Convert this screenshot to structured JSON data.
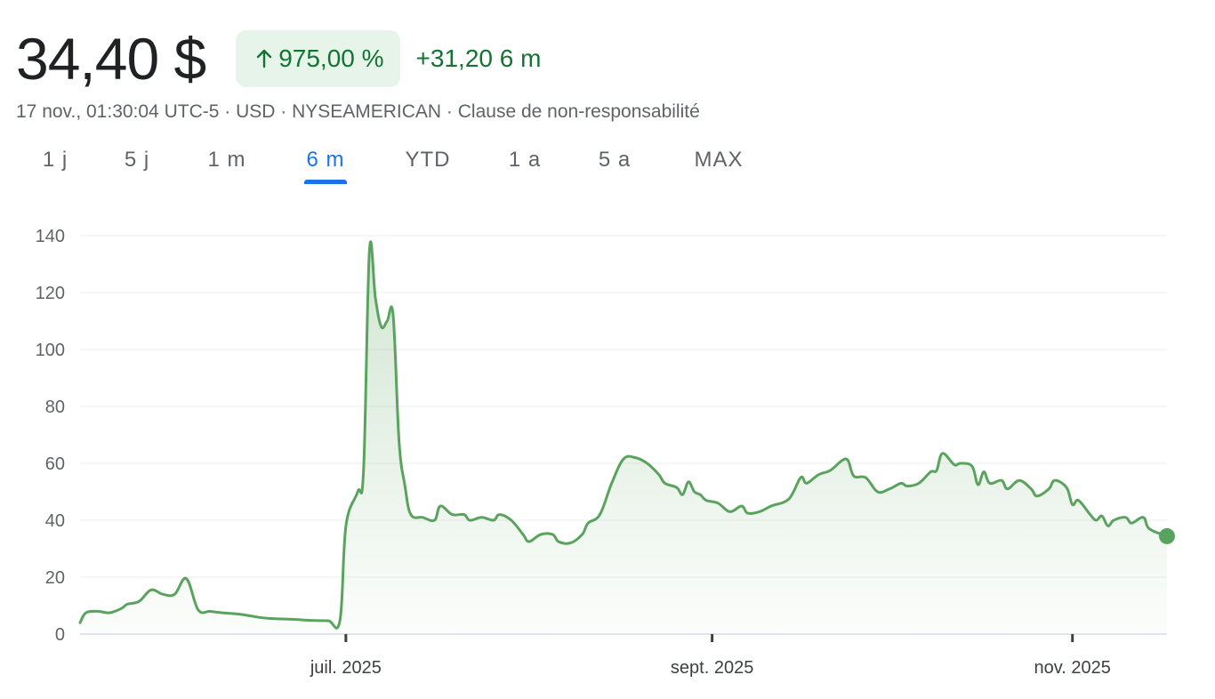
{
  "quote": {
    "price": "34,40 $",
    "change_percent": "975,00 %",
    "change_abs": "+31,20 6 m",
    "meta": "17 nov., 01:30:04 UTC-5 · USD · NYSEAMERICAN · Clause de non-responsabilité",
    "direction": "up"
  },
  "tabs": [
    {
      "label": "1 j",
      "active": false
    },
    {
      "label": "5 j",
      "active": false
    },
    {
      "label": "1 m",
      "active": false
    },
    {
      "label": "6 m",
      "active": true
    },
    {
      "label": "YTD",
      "active": false
    },
    {
      "label": "1 a",
      "active": false
    },
    {
      "label": "5 a",
      "active": false
    },
    {
      "label": "MAX",
      "active": false
    }
  ],
  "colors": {
    "up": "#137333",
    "line": "#5aa35e",
    "accent": "#1a73e8",
    "badge_bg": "#e6f4ea"
  },
  "chart_data": {
    "type": "area",
    "ylim": [
      0,
      140
    ],
    "yticks": [
      "0",
      "20",
      "40",
      "60",
      "80",
      "100",
      "120",
      "140"
    ],
    "xlim": [
      "2025-05-17",
      "2025-11-17"
    ],
    "xticks": [
      {
        "date": "2025-07-01",
        "label": "juil. 2025"
      },
      {
        "date": "2025-09-01",
        "label": "sept. 2025"
      },
      {
        "date": "2025-11-01",
        "label": "nov. 2025"
      }
    ],
    "grid": true,
    "series": [
      {
        "values": [
          [
            "2025-05-17",
            4
          ],
          [
            "2025-05-18",
            7.5
          ],
          [
            "2025-05-20",
            8
          ],
          [
            "2025-05-22",
            7.5
          ],
          [
            "2025-05-24",
            9
          ],
          [
            "2025-05-25",
            10.5
          ],
          [
            "2025-05-27",
            11.5
          ],
          [
            "2025-05-29",
            15.5
          ],
          [
            "2025-05-31",
            14
          ],
          [
            "2025-06-02",
            14
          ],
          [
            "2025-06-04",
            19.5
          ],
          [
            "2025-06-06",
            8.5
          ],
          [
            "2025-06-08",
            8
          ],
          [
            "2025-06-10",
            7.5
          ],
          [
            "2025-06-13",
            7
          ],
          [
            "2025-06-16",
            6
          ],
          [
            "2025-06-18",
            5.5
          ],
          [
            "2025-06-22",
            5.2
          ],
          [
            "2025-06-25",
            4.8
          ],
          [
            "2025-06-28",
            4.7
          ],
          [
            "2025-06-30",
            4.8
          ],
          [
            "2025-07-01",
            38
          ],
          [
            "2025-07-03",
            50
          ],
          [
            "2025-07-04",
            58
          ],
          [
            "2025-07-05",
            135
          ],
          [
            "2025-07-06",
            118
          ],
          [
            "2025-07-07",
            108
          ],
          [
            "2025-07-08",
            110
          ],
          [
            "2025-07-09",
            112
          ],
          [
            "2025-07-10",
            68
          ],
          [
            "2025-07-11",
            52
          ],
          [
            "2025-07-12",
            42
          ],
          [
            "2025-07-14",
            41
          ],
          [
            "2025-07-16",
            40
          ],
          [
            "2025-07-17",
            45
          ],
          [
            "2025-07-19",
            42
          ],
          [
            "2025-07-21",
            42
          ],
          [
            "2025-07-22",
            40
          ],
          [
            "2025-07-24",
            41
          ],
          [
            "2025-07-26",
            40
          ],
          [
            "2025-07-27",
            42
          ],
          [
            "2025-07-29",
            40
          ],
          [
            "2025-07-31",
            35
          ],
          [
            "2025-08-01",
            32.5
          ],
          [
            "2025-08-03",
            35
          ],
          [
            "2025-08-05",
            35
          ],
          [
            "2025-08-06",
            32.5
          ],
          [
            "2025-08-08",
            32
          ],
          [
            "2025-08-10",
            35
          ],
          [
            "2025-08-11",
            39
          ],
          [
            "2025-08-13",
            42
          ],
          [
            "2025-08-15",
            53
          ],
          [
            "2025-08-17",
            61.5
          ],
          [
            "2025-08-19",
            62
          ],
          [
            "2025-08-21",
            60
          ],
          [
            "2025-08-23",
            56
          ],
          [
            "2025-08-24",
            53
          ],
          [
            "2025-08-26",
            51.5
          ],
          [
            "2025-08-27",
            49
          ],
          [
            "2025-08-28",
            53.5
          ],
          [
            "2025-08-29",
            50
          ],
          [
            "2025-08-30",
            49
          ],
          [
            "2025-08-31",
            47
          ],
          [
            "2025-09-02",
            46
          ],
          [
            "2025-09-04",
            43
          ],
          [
            "2025-09-06",
            45
          ],
          [
            "2025-09-07",
            42.5
          ],
          [
            "2025-09-09",
            43
          ],
          [
            "2025-09-11",
            45
          ],
          [
            "2025-09-14",
            47.5
          ],
          [
            "2025-09-16",
            55
          ],
          [
            "2025-09-17",
            53
          ],
          [
            "2025-09-19",
            56
          ],
          [
            "2025-09-21",
            57.5
          ],
          [
            "2025-09-23",
            61
          ],
          [
            "2025-09-24",
            61
          ],
          [
            "2025-09-25",
            55.5
          ],
          [
            "2025-09-27",
            55
          ],
          [
            "2025-09-29",
            50
          ],
          [
            "2025-10-01",
            51
          ],
          [
            "2025-10-03",
            53
          ],
          [
            "2025-10-04",
            52
          ],
          [
            "2025-10-06",
            53
          ],
          [
            "2025-10-08",
            57
          ],
          [
            "2025-10-09",
            57.5
          ],
          [
            "2025-10-10",
            63.5
          ],
          [
            "2025-10-12",
            59.5
          ],
          [
            "2025-10-13",
            60
          ],
          [
            "2025-10-15",
            59
          ],
          [
            "2025-10-16",
            52.5
          ],
          [
            "2025-10-17",
            57
          ],
          [
            "2025-10-18",
            53
          ],
          [
            "2025-10-20",
            54
          ],
          [
            "2025-10-21",
            51
          ],
          [
            "2025-10-23",
            54
          ],
          [
            "2025-10-25",
            51
          ],
          [
            "2025-10-26",
            48.5
          ],
          [
            "2025-10-28",
            51
          ],
          [
            "2025-10-29",
            54
          ],
          [
            "2025-10-31",
            51.5
          ],
          [
            "2025-11-01",
            45.5
          ],
          [
            "2025-11-02",
            47
          ],
          [
            "2025-11-04",
            42
          ],
          [
            "2025-11-05",
            40
          ],
          [
            "2025-11-06",
            41.5
          ],
          [
            "2025-11-07",
            38
          ],
          [
            "2025-11-08",
            40
          ],
          [
            "2025-11-10",
            41
          ],
          [
            "2025-11-11",
            39
          ],
          [
            "2025-11-13",
            41
          ],
          [
            "2025-11-14",
            37
          ],
          [
            "2025-11-17",
            34.4
          ]
        ]
      }
    ]
  }
}
